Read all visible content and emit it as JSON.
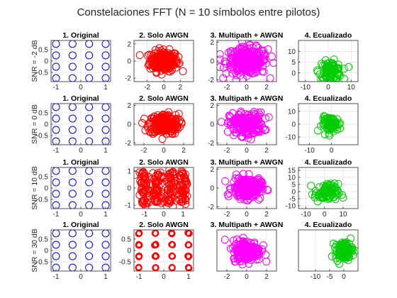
{
  "figure": {
    "title": "Constelaciones FFT (N = 10 símbolos entre pilotos)"
  },
  "colors": {
    "original": "#0000ff",
    "awgn": "#ff0000",
    "multipath": "#ff00ff",
    "equalized": "#00cc00",
    "axis": "#262626",
    "grid": "#dfdfdf"
  },
  "chart_data": [
    {
      "type": "scatter",
      "title": "1. Original",
      "ylabel": "SNR = -2 dB",
      "xlim": [
        -1.2,
        1.2
      ],
      "ylim": [
        -0.9,
        0.9
      ],
      "xticks": [
        "-1",
        "0",
        "1"
      ],
      "yticks": [
        "0.5",
        "0",
        "-0.5"
      ],
      "grid": true,
      "legend": "none",
      "style": {
        "color": "original",
        "marker_size": 5,
        "lw": 1
      },
      "points": {
        "mode": "grid",
        "xs": [
          -1,
          -0.333,
          0.333,
          1
        ],
        "ys": [
          0.75,
          0.25,
          -0.25,
          -0.75
        ]
      }
    },
    {
      "type": "scatter",
      "title": "2. Solo AWGN",
      "xlim": [
        -3.6,
        3.6
      ],
      "ylim": [
        -2.4,
        2.4
      ],
      "xticks": [
        "-2",
        "0",
        "2"
      ],
      "yticks": [
        "2",
        "0",
        "-2"
      ],
      "grid": true,
      "legend": "none",
      "style": {
        "color": "awgn",
        "marker_size": 5,
        "lw": 1
      },
      "points": {
        "mode": "cloud",
        "n": 220,
        "cx": 0,
        "cy": 0,
        "sx": 0.85,
        "sy": 0.6,
        "clip": [
          -2.9,
          2.9,
          -2.05,
          2.1
        ]
      }
    },
    {
      "type": "scatter",
      "title": "3. Multipath + AWGN",
      "xlim": [
        -3,
        3
      ],
      "ylim": [
        -2.2,
        2.2
      ],
      "xticks": [
        "-2",
        "0",
        "2"
      ],
      "yticks": [
        "2",
        "0",
        "-2"
      ],
      "grid": true,
      "legend": "none",
      "style": {
        "color": "multipath",
        "marker_size": 5,
        "lw": 1
      },
      "points": {
        "mode": "cloud",
        "n": 260,
        "cx": 0,
        "cy": 0,
        "sx": 1.05,
        "sy": 0.72,
        "clip": [
          -2.7,
          2.7,
          -2.05,
          2.05
        ]
      }
    },
    {
      "type": "scatter",
      "title": "4. Ecualizado",
      "xlim": [
        -13,
        13
      ],
      "ylim": [
        -4,
        15
      ],
      "xticks": [
        "-10",
        "0",
        "10"
      ],
      "yticks": [
        "10",
        "5",
        "0"
      ],
      "grid": true,
      "legend": "none",
      "style": {
        "color": "equalized",
        "marker_size": 5,
        "lw": 1
      },
      "points": {
        "mode": "cloud",
        "n": 90,
        "cx": 1,
        "cy": 1,
        "sx": 2.5,
        "sy": 2.2,
        "clip": [
          -10,
          10,
          -3,
          14
        ]
      }
    },
    {
      "type": "scatter",
      "title": "1. Original",
      "ylabel": "SNR = 0 dB",
      "xlim": [
        -1.2,
        1.2
      ],
      "ylim": [
        -0.9,
        0.9
      ],
      "xticks": [
        "-1",
        "0",
        "1"
      ],
      "yticks": [
        "0.5",
        "0",
        "-0.5"
      ],
      "grid": true,
      "legend": "none",
      "style": {
        "color": "original",
        "marker_size": 5,
        "lw": 1
      },
      "points": {
        "mode": "grid",
        "xs": [
          -1,
          -0.333,
          0.333,
          1
        ],
        "ys": [
          0.75,
          0.25,
          -0.25,
          -0.75
        ]
      }
    },
    {
      "type": "scatter",
      "title": "2. Solo AWGN",
      "xlim": [
        -3,
        3
      ],
      "ylim": [
        -2.2,
        2.2
      ],
      "xticks": [
        "-2",
        "0",
        "2"
      ],
      "yticks": [
        "2",
        "0",
        "-2"
      ],
      "grid": true,
      "legend": "none",
      "style": {
        "color": "awgn",
        "marker_size": 5,
        "lw": 1
      },
      "points": {
        "mode": "cloud",
        "n": 220,
        "cx": 0,
        "cy": 0,
        "sx": 0.75,
        "sy": 0.55,
        "clip": [
          -2.7,
          2.7,
          -2,
          2
        ]
      }
    },
    {
      "type": "scatter",
      "title": "3. Multipath + AWGN",
      "xlim": [
        -3,
        3
      ],
      "ylim": [
        -2.2,
        2.2
      ],
      "xticks": [
        "-2",
        "0",
        "2"
      ],
      "yticks": [
        "2",
        "0",
        "-2"
      ],
      "grid": true,
      "legend": "none",
      "style": {
        "color": "multipath",
        "marker_size": 5,
        "lw": 1
      },
      "points": {
        "mode": "cloud",
        "n": 200,
        "cx": 0,
        "cy": 0,
        "sx": 0.85,
        "sy": 0.62,
        "clip": [
          -2.8,
          2.8,
          -2.05,
          2.05
        ]
      }
    },
    {
      "type": "scatter",
      "title": "4. Ecualizado",
      "xlim": [
        -15,
        12
      ],
      "ylim": [
        -16,
        16
      ],
      "xticks": [
        "-10",
        "0"
      ],
      "yticks": [
        "10",
        "0",
        "-10"
      ],
      "grid": true,
      "legend": "none",
      "style": {
        "color": "equalized",
        "marker_size": 5,
        "lw": 1
      },
      "points": {
        "mode": "cloud",
        "n": 80,
        "cx": 0,
        "cy": 0,
        "sx": 2.2,
        "sy": 2.8,
        "clip": [
          -12,
          11,
          -12,
          12
        ]
      }
    },
    {
      "type": "scatter",
      "title": "1. Original",
      "ylabel": "SNR = 10 dB",
      "xlim": [
        -1.2,
        1.2
      ],
      "ylim": [
        -0.9,
        0.9
      ],
      "xticks": [
        "-1",
        "0",
        "1"
      ],
      "yticks": [
        "0.5",
        "0",
        "-0.5"
      ],
      "grid": true,
      "legend": "none",
      "style": {
        "color": "original",
        "marker_size": 5,
        "lw": 1
      },
      "points": {
        "mode": "grid",
        "xs": [
          -1,
          -0.333,
          0.333,
          1
        ],
        "ys": [
          0.75,
          0.25,
          -0.25,
          -0.75
        ]
      }
    },
    {
      "type": "scatter",
      "title": "2. Solo AWGN",
      "xlim": [
        -1.55,
        1.55
      ],
      "ylim": [
        -1.2,
        1.2
      ],
      "xticks": [
        "-1",
        "0",
        "1"
      ],
      "yticks": [
        "1",
        "0",
        "-1"
      ],
      "grid": true,
      "legend": "none",
      "style": {
        "color": "awgn",
        "marker_size": 5,
        "lw": 1
      },
      "points": {
        "mode": "clusters",
        "xs": [
          -1,
          -0.333,
          0.333,
          1
        ],
        "ys": [
          0.75,
          0.25,
          -0.25,
          -0.75
        ],
        "per": 14,
        "sd": 0.13
      }
    },
    {
      "type": "scatter",
      "title": "3. Multipath + AWGN",
      "xlim": [
        -3,
        3
      ],
      "ylim": [
        -2.2,
        2.2
      ],
      "xticks": [
        "-2",
        "0",
        "2"
      ],
      "yticks": [
        "2",
        "0",
        "-2"
      ],
      "grid": true,
      "legend": "none",
      "style": {
        "color": "multipath",
        "marker_size": 5,
        "lw": 1
      },
      "points": {
        "mode": "cloud",
        "n": 220,
        "cx": 0,
        "cy": 0,
        "sx": 0.72,
        "sy": 0.58,
        "clip": [
          -2.3,
          2.3,
          -2.05,
          2.05
        ]
      }
    },
    {
      "type": "scatter",
      "title": "4. Ecualizado",
      "xlim": [
        -14,
        18
      ],
      "ylim": [
        -12,
        17
      ],
      "xticks": [
        "-10",
        "0",
        "10"
      ],
      "yticks": [
        "15",
        "10",
        "5",
        "0",
        "-5",
        "-10"
      ],
      "grid": true,
      "legend": "none",
      "style": {
        "color": "equalized",
        "marker_size": 5,
        "lw": 1
      },
      "points": {
        "mode": "cloud",
        "n": 80,
        "cx": 1,
        "cy": -1,
        "sx": 3.2,
        "sy": 3.2,
        "clip": [
          -12,
          16,
          -11,
          15
        ]
      }
    },
    {
      "type": "scatter",
      "title": "1. Original",
      "ylabel": "SNR = 30 dB",
      "xlim": [
        -1.2,
        1.2
      ],
      "ylim": [
        -0.9,
        0.9
      ],
      "xticks": [
        "-1",
        "0",
        "1"
      ],
      "yticks": [
        "0.5",
        "0",
        "-0.5"
      ],
      "grid": true,
      "legend": "none",
      "style": {
        "color": "original",
        "marker_size": 5,
        "lw": 1
      },
      "points": {
        "mode": "grid",
        "xs": [
          -1,
          -0.333,
          0.333,
          1
        ],
        "ys": [
          0.75,
          0.25,
          -0.25,
          -0.75
        ]
      }
    },
    {
      "type": "scatter",
      "title": "2. Solo AWGN",
      "xlim": [
        -1.2,
        1.2
      ],
      "ylim": [
        -0.9,
        0.9
      ],
      "xticks": [
        "-1",
        "0",
        "1"
      ],
      "yticks": [
        "0.5",
        "0",
        "-0.5"
      ],
      "grid": true,
      "legend": "none",
      "style": {
        "color": "awgn",
        "marker_size": 4,
        "lw": 1.2
      },
      "points": {
        "mode": "clusters",
        "xs": [
          -1,
          -0.333,
          0.333,
          1
        ],
        "ys": [
          0.75,
          0.25,
          -0.25,
          -0.75
        ],
        "per": 8,
        "sd": 0.015
      }
    },
    {
      "type": "scatter",
      "title": "3. Multipath + AWGN",
      "xlim": [
        -3,
        3
      ],
      "ylim": [
        -2.2,
        2.2
      ],
      "xticks": [
        "-2",
        "0",
        "2"
      ],
      "yticks": [],
      "grid": true,
      "legend": "none",
      "style": {
        "color": "multipath",
        "marker_size": 5,
        "lw": 1
      },
      "points": {
        "mode": "cloud",
        "n": 200,
        "cx": 0,
        "cy": 0,
        "sx": 0.7,
        "sy": 0.55,
        "clip": [
          -2.2,
          2.2,
          -2,
          2
        ]
      }
    },
    {
      "type": "scatter",
      "title": "4. Ecualizado",
      "xlim": [
        -16,
        5
      ],
      "ylim": [
        -7,
        7
      ],
      "xticks": [
        "-10",
        "-5",
        "0"
      ],
      "yticks": [],
      "grid": true,
      "legend": "none",
      "style": {
        "color": "equalized",
        "marker_size": 5,
        "lw": 1
      },
      "points": {
        "mode": "cloud",
        "n": 120,
        "cx": 0,
        "cy": 0,
        "sx": 1.5,
        "sy": 1.5,
        "clip": [
          -12,
          4,
          -6,
          6
        ]
      }
    }
  ]
}
